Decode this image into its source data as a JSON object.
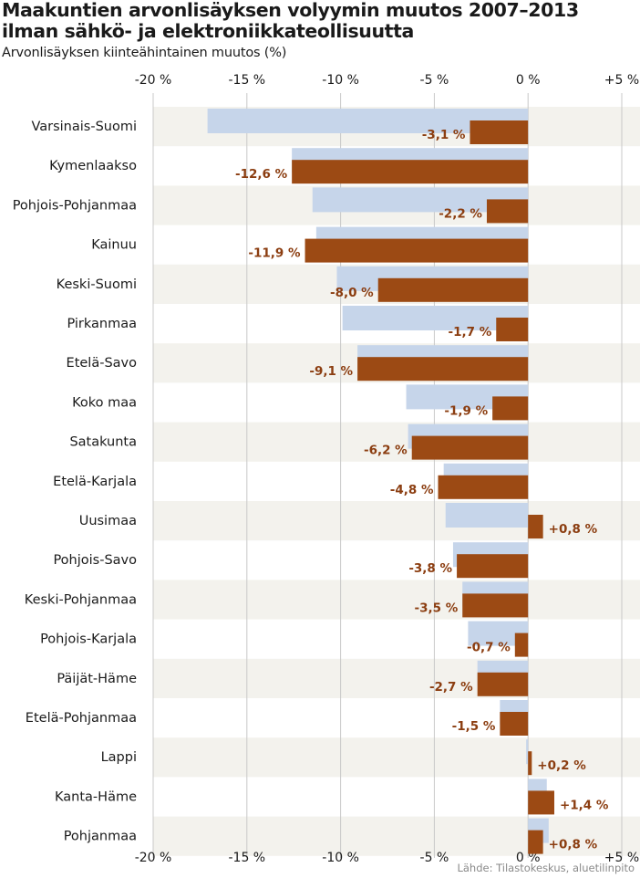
{
  "title": "Maakuntien arvonlisäyksen volyymin muutos 2007–2013 ilman sähkö- ja elektroniikkateollisuutta",
  "subtitle": "Arvonlisäyksen kiinteähintainen muutos (%)",
  "source": "Lähde: Tilastokeskus, aluetilinpito",
  "colors": {
    "series_a": "#c6d5ea",
    "series_b": "#9c4a14",
    "band": "#f3f2ed",
    "grid": "#c8c8c8",
    "label": "#8b3d10"
  },
  "chart_data": {
    "type": "bar",
    "orientation": "horizontal",
    "xlim": [
      -20,
      5
    ],
    "xticks": [
      -20,
      -15,
      -10,
      -5,
      0,
      5
    ],
    "xtick_labels": [
      "-20 %",
      "-15 %",
      "-10 %",
      "-5 %",
      "0 %",
      "+5 %"
    ],
    "grid": true,
    "categories": [
      "Varsinais-Suomi",
      "Kymenlaakso",
      "Pohjois-Pohjanmaa",
      "Kainuu",
      "Keski-Suomi",
      "Pirkanmaa",
      "Etelä-Savo",
      "Koko maa",
      "Satakunta",
      "Etelä-Karjala",
      "Uusimaa",
      "Pohjois-Savo",
      "Keski-Pohjanmaa",
      "Pohjois-Karjala",
      "Päijät-Häme",
      "Etelä-Pohjanmaa",
      "Lappi",
      "Kanta-Häme",
      "Pohjanmaa"
    ],
    "series": [
      {
        "values": [
          -17.1,
          -12.6,
          -11.5,
          -11.3,
          -10.2,
          -9.9,
          -9.1,
          -6.5,
          -6.4,
          -4.5,
          -4.4,
          -4.0,
          -3.5,
          -3.2,
          -2.7,
          -1.5,
          -0.1,
          1.0,
          1.1
        ]
      },
      {
        "values": [
          -3.1,
          -12.6,
          -2.2,
          -11.9,
          -8.0,
          -1.7,
          -9.1,
          -1.9,
          -6.2,
          -4.8,
          0.8,
          -3.8,
          -3.5,
          -0.7,
          -2.7,
          -1.5,
          0.2,
          1.4,
          0.8
        ],
        "labels": [
          "-3,1 %",
          "-12,6 %",
          "-2,2 %",
          "-11,9 %",
          "-8,0 %",
          "-1,7 %",
          "-9,1 %",
          "-1,9 %",
          "-6,2 %",
          "-4,8 %",
          "+0,8 %",
          "-3,8 %",
          "-3,5 %",
          "-0,7 %",
          "-2,7 %",
          "-1,5 %",
          "+0,2 %",
          "+1,4 %",
          "+0,8 %"
        ]
      }
    ]
  }
}
